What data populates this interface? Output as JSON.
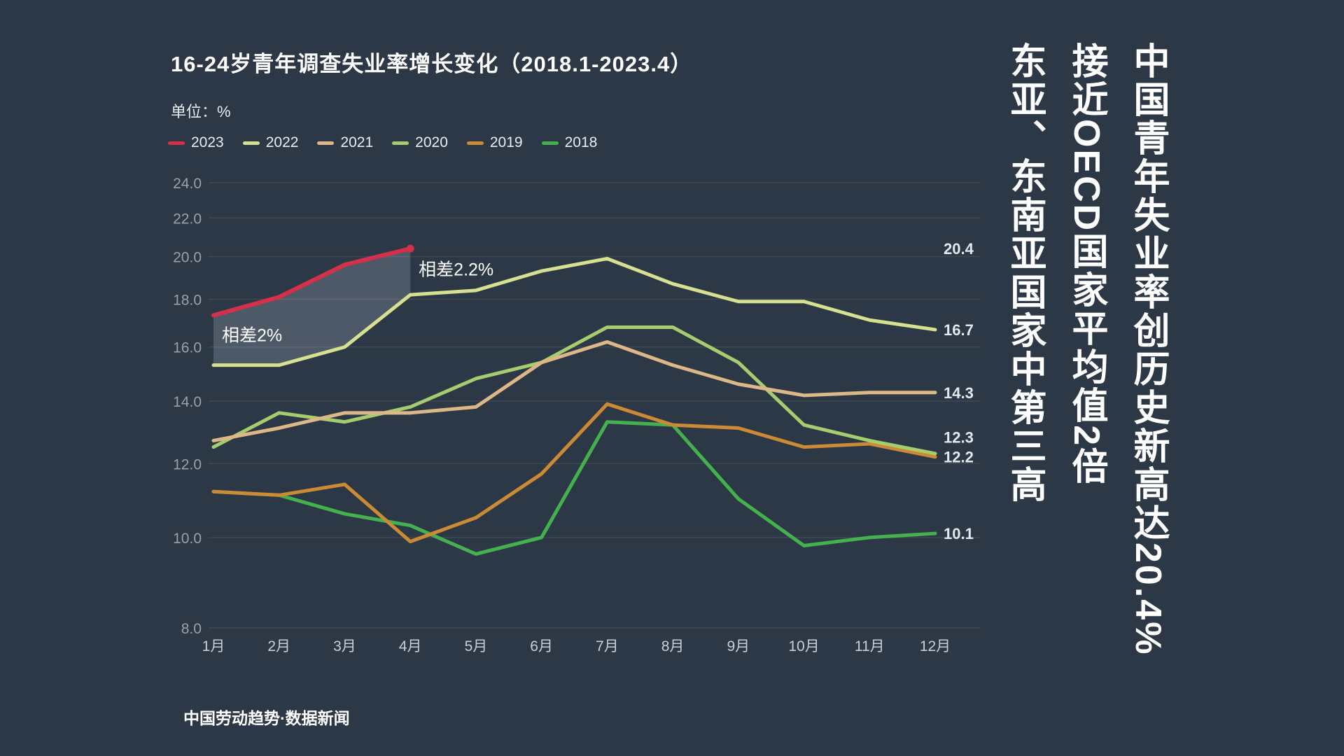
{
  "colors": {
    "background": "#2c3845",
    "gridline": "#3e4855",
    "title_text": "#ffffff",
    "subtitle_text": "#e8ecef",
    "y_tick_text": "#97a0ab",
    "x_tick_text": "#c9cfd7",
    "end_label_text": "#e4e8ec",
    "annotation_text": "#ffffff",
    "band_fill": "rgba(216,226,238,0.20)"
  },
  "header": {
    "title": "16-24岁青年调查失业率增长变化（2018.1-2023.4）",
    "unit_label": "单位：%"
  },
  "legend": {
    "items": [
      {
        "label": "2023",
        "color": "#d53049"
      },
      {
        "label": "2022",
        "color": "#d7df90"
      },
      {
        "label": "2021",
        "color": "#ddb787"
      },
      {
        "label": "2020",
        "color": "#a5cc6f"
      },
      {
        "label": "2019",
        "color": "#cc8a35"
      },
      {
        "label": "2018",
        "color": "#45b14e"
      }
    ]
  },
  "chart_data": {
    "type": "line",
    "y_scale": "log",
    "ylim": [
      8.0,
      24.0
    ],
    "grid": "horizontal",
    "legend_position": "top-left",
    "y_ticks": [
      "24.0",
      "22.0",
      "20.0",
      "18.0",
      "16.0",
      "14.0",
      "12.0",
      "10.0",
      "8.0"
    ],
    "categories": [
      "1月",
      "2月",
      "3月",
      "4月",
      "5月",
      "6月",
      "7月",
      "8月",
      "9月",
      "10月",
      "11月",
      "12月"
    ],
    "series": [
      {
        "name": "2018",
        "color": "#45b14e",
        "line_width": 5,
        "end_label": "10.1",
        "values": [
          11.2,
          11.1,
          10.6,
          10.3,
          9.6,
          10.0,
          13.3,
          13.2,
          11.0,
          9.8,
          10.0,
          10.1
        ]
      },
      {
        "name": "2019",
        "color": "#cc8a35",
        "line_width": 5,
        "end_label": "12.2",
        "values": [
          11.2,
          11.1,
          11.4,
          9.9,
          10.5,
          11.7,
          13.9,
          13.2,
          13.1,
          12.5,
          12.6,
          12.2
        ]
      },
      {
        "name": "2020",
        "color": "#a5cc6f",
        "line_width": 5,
        "end_label": "12.3",
        "values": [
          12.5,
          13.6,
          13.3,
          13.8,
          14.8,
          15.4,
          16.8,
          16.8,
          15.4,
          13.2,
          12.7,
          12.3
        ]
      },
      {
        "name": "2021",
        "color": "#ddb787",
        "line_width": 5,
        "end_label": "14.3",
        "values": [
          12.7,
          13.1,
          13.6,
          13.6,
          13.8,
          15.4,
          16.2,
          15.3,
          14.6,
          14.2,
          14.3,
          14.3
        ]
      },
      {
        "name": "2022",
        "color": "#d7df90",
        "line_width": 5,
        "end_label": "16.7",
        "values": [
          15.3,
          15.3,
          16.0,
          18.2,
          18.4,
          19.3,
          19.9,
          18.7,
          17.9,
          17.9,
          17.1,
          16.7
        ]
      },
      {
        "name": "2023",
        "color": "#d53049",
        "line_width": 6,
        "end_label": "20.4",
        "end_dot": true,
        "values": [
          17.3,
          18.1,
          19.6,
          20.4
        ]
      }
    ],
    "band": {
      "between": [
        "2023",
        "2022"
      ],
      "month_range": [
        1,
        4
      ]
    },
    "annotations": [
      {
        "text": "相差2%",
        "month": 1,
        "value": 16.45
      },
      {
        "text": "相差2.2%",
        "month": 4,
        "value": 19.35
      }
    ]
  },
  "headlines": {
    "line1": "中国青年失业率创历史新高达20.4%",
    "line2": "接近OECD国家平均值2倍",
    "line3": "东亚、东南亚国家中第三高"
  },
  "footer": {
    "source": "中国劳动趋势·数据新闻"
  }
}
